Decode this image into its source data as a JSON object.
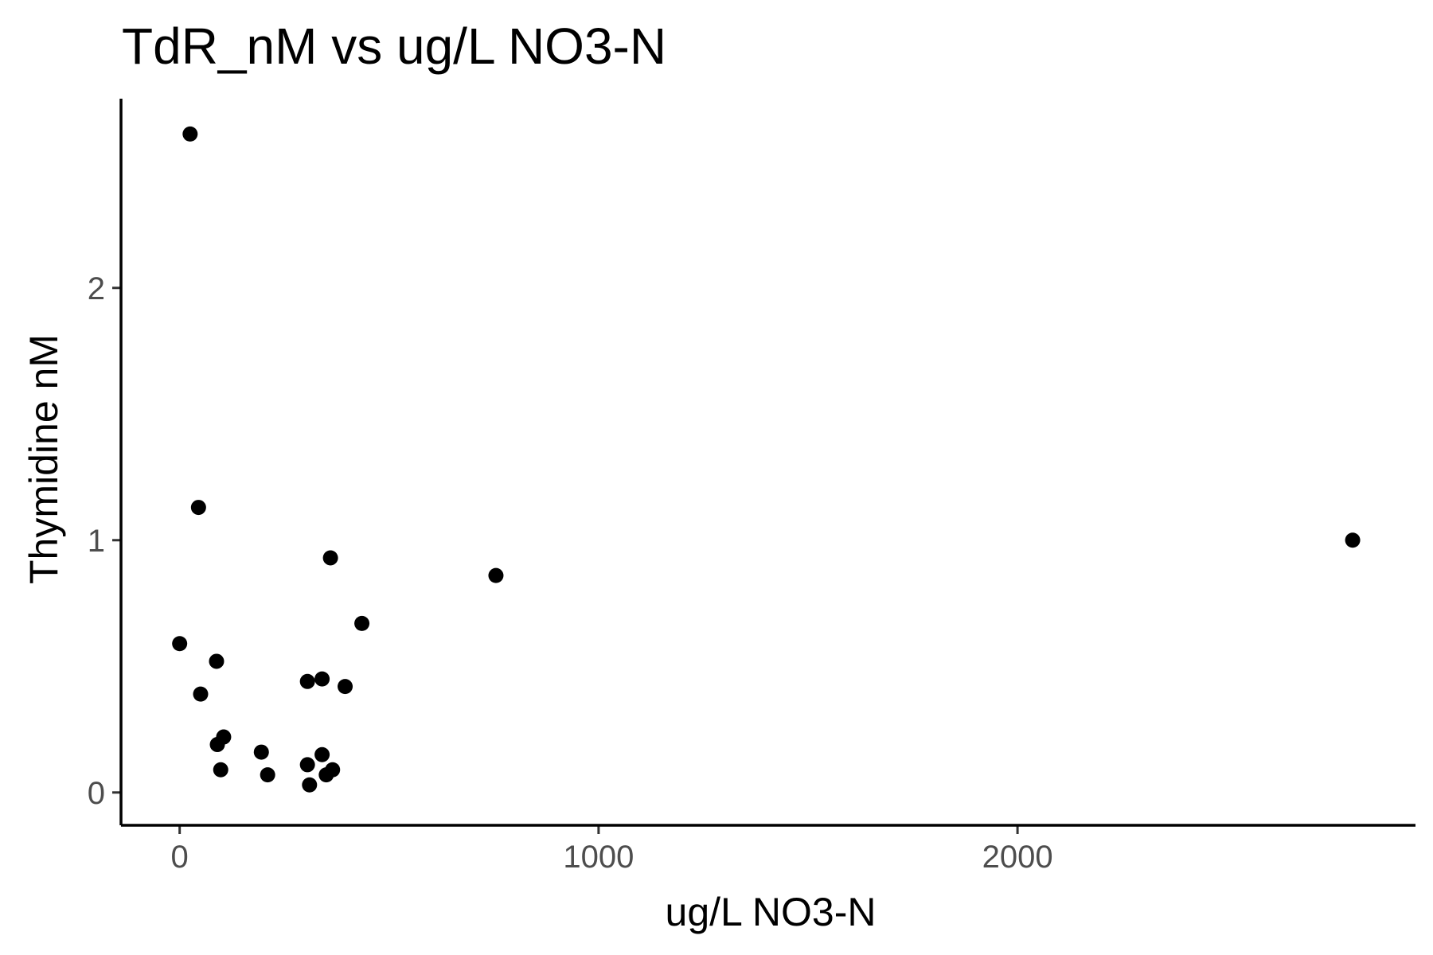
{
  "chart_data": {
    "type": "scatter",
    "title": "TdR_nM vs ug/L NO3-N",
    "xlabel": "ug/L NO3-N",
    "ylabel": "Thymidine nM",
    "xlim": [
      -140,
      2950
    ],
    "ylim": [
      -0.13,
      2.75
    ],
    "xticks": [
      0,
      1000,
      2000
    ],
    "xtick_labels": [
      "0",
      "1000",
      "2000"
    ],
    "yticks": [
      0,
      1,
      2
    ],
    "ytick_labels": [
      "0",
      "1",
      "2"
    ],
    "grid": false,
    "legend": "none",
    "point_color": "#000000",
    "points": [
      {
        "x": 25,
        "y": 2.61
      },
      {
        "x": 45,
        "y": 1.13
      },
      {
        "x": 0,
        "y": 0.59
      },
      {
        "x": 88,
        "y": 0.52
      },
      {
        "x": 50,
        "y": 0.39
      },
      {
        "x": 90,
        "y": 0.19
      },
      {
        "x": 105,
        "y": 0.22
      },
      {
        "x": 98,
        "y": 0.09
      },
      {
        "x": 195,
        "y": 0.16
      },
      {
        "x": 210,
        "y": 0.07
      },
      {
        "x": 305,
        "y": 0.44
      },
      {
        "x": 340,
        "y": 0.45
      },
      {
        "x": 305,
        "y": 0.11
      },
      {
        "x": 310,
        "y": 0.03
      },
      {
        "x": 340,
        "y": 0.15
      },
      {
        "x": 350,
        "y": 0.07
      },
      {
        "x": 365,
        "y": 0.09
      },
      {
        "x": 360,
        "y": 0.93
      },
      {
        "x": 395,
        "y": 0.42
      },
      {
        "x": 435,
        "y": 0.67
      },
      {
        "x": 755,
        "y": 0.86
      },
      {
        "x": 2800,
        "y": 1.0
      }
    ]
  }
}
